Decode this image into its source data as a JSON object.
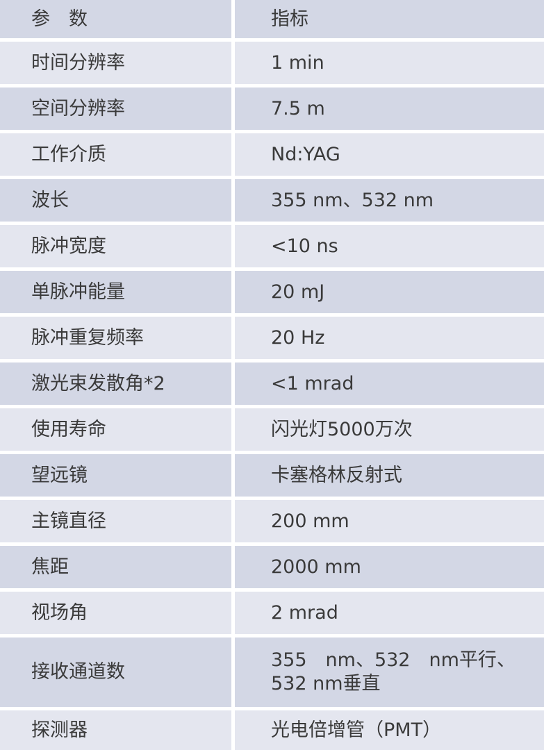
{
  "header": {
    "param": "参　数",
    "value": "指标"
  },
  "rows": [
    {
      "param": "时间分辨率",
      "value": "1 min"
    },
    {
      "param": "空间分辨率",
      "value": "7.5 m"
    },
    {
      "param": "工作介质",
      "value": "Nd:YAG"
    },
    {
      "param": "波长",
      "value": "355 nm、532 nm"
    },
    {
      "param": "脉冲宽度",
      "value": "<10 ns"
    },
    {
      "param": "单脉冲能量",
      "value": "20 mJ"
    },
    {
      "param": "脉冲重复频率",
      "value": "20 Hz"
    },
    {
      "param": "激光束发散角*2",
      "value": "<1 mrad"
    },
    {
      "param": "使用寿命",
      "value": "闪光灯5000万次"
    },
    {
      "param": "望远镜",
      "value": "卡塞格林反射式"
    },
    {
      "param": "主镜直径",
      "value": "200 mm"
    },
    {
      "param": "焦距",
      "value": "2000 mm"
    },
    {
      "param": "视场角",
      "value": "2 mrad"
    },
    {
      "param": "接收通道数",
      "value": "355　nm、532　nm平行、532 nm垂直"
    },
    {
      "param": "探测器",
      "value": "光电倍增管（PMT）"
    }
  ],
  "colors": {
    "row_dark": "#d3d7e5",
    "row_light": "#e4e6ef"
  }
}
